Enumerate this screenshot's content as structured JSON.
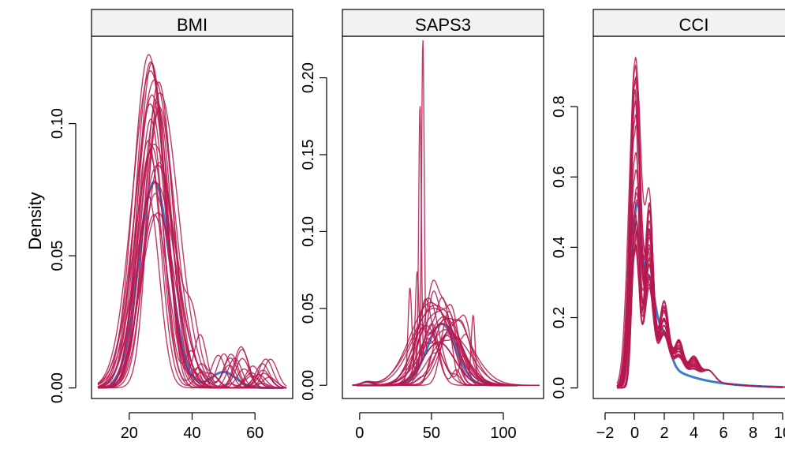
{
  "chart_data": {
    "type": "line",
    "ylabel": "Density",
    "colors": {
      "imputed": "#B5184F",
      "observed": "#3A7DC9",
      "strip_bg": "#F2F2F2"
    },
    "panels": [
      {
        "title": "BMI",
        "xlim": [
          8,
          72
        ],
        "ylim": [
          -0.004,
          0.133
        ],
        "xticks": [
          20,
          40,
          60
        ],
        "yticks": [
          0.0,
          0.05,
          0.1
        ],
        "ytick_labels": [
          "0.00",
          "0.05",
          "0.10"
        ],
        "observed": {
          "mean": 28,
          "sd": 5.0,
          "peak": 0.078,
          "x_range": [
            14,
            69
          ]
        },
        "imputed": {
          "count": 24,
          "mean_range": [
            25.5,
            31.5
          ],
          "sd_range": [
            3.0,
            6.5
          ],
          "peak_range": [
            0.065,
            0.128
          ],
          "x_range": [
            10,
            70
          ],
          "bump_x_range": [
            46,
            65
          ],
          "bump_height_max": 0.016
        }
      },
      {
        "title": "SAPS3",
        "xlim": [
          -12,
          128
        ],
        "ylim": [
          -0.0086,
          0.227
        ],
        "xticks": [
          0,
          50,
          100
        ],
        "yticks": [
          0.0,
          0.05,
          0.1,
          0.15,
          0.2
        ],
        "ytick_labels": [
          "0.00",
          "0.05",
          "0.10",
          "0.15",
          "0.20"
        ],
        "observed": {
          "mean": 57,
          "sd": 10.0,
          "peak": 0.04,
          "x_range": [
            -2,
            110
          ]
        },
        "imputed": {
          "count": 24,
          "mean_range": [
            45,
            68
          ],
          "sd_range": [
            5,
            16
          ],
          "peak_range": [
            0.025,
            0.06
          ],
          "x_range": [
            -5,
            125
          ],
          "spikes": [
            {
              "x": 44,
              "height": 0.208
            },
            {
              "x": 42,
              "height": 0.169
            },
            {
              "x": 40,
              "height": 0.063
            },
            {
              "x": 35,
              "height": 0.058
            },
            {
              "x": 79,
              "height": 0.043
            }
          ]
        }
      },
      {
        "title": "CCI",
        "xlim": [
          -2.8,
          10.8
        ],
        "ylim": [
          -0.03,
          1.0
        ],
        "xticks": [
          -2,
          0,
          2,
          4,
          6,
          8,
          10
        ],
        "yticks": [
          0.0,
          0.2,
          0.4,
          0.6,
          0.8
        ],
        "ytick_labels": [
          "0.0",
          "0.2",
          "0.4",
          "0.6",
          "0.8"
        ],
        "observed": {
          "peak": 0.47,
          "x_range": [
            -1,
            10
          ]
        },
        "imputed": {
          "count": 24,
          "peak_range": [
            0.38,
            0.94
          ],
          "x_range": [
            -1.2,
            10.5
          ]
        }
      }
    ]
  }
}
